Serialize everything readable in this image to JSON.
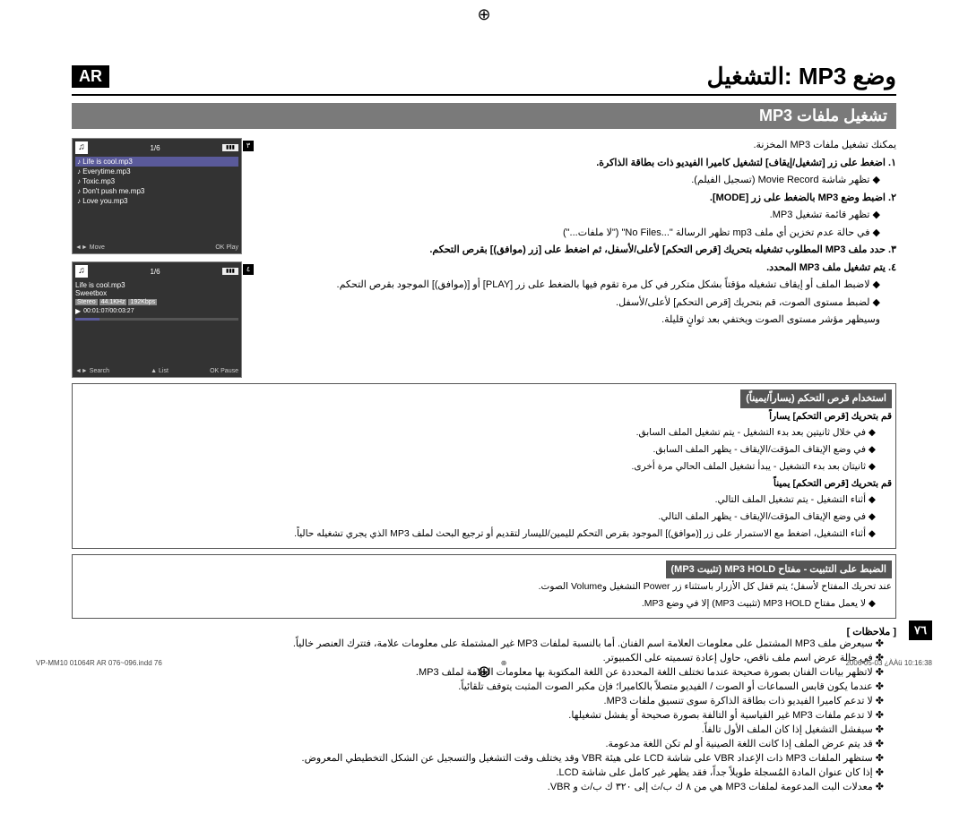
{
  "badge": "AR",
  "main_title": "وضع MP3 :التشغيل",
  "section_title": "تشغيل ملفات MP3",
  "intro": "يمكنك تشغيل ملفات MP3 المخزنة.",
  "step1": "١. اضغط على زر [تشغيل/إيقاف] لتشغيل كاميرا الفيديو ذات بطاقة الذاكرة.",
  "step1_sub": "◆ تظهر شاشة Movie Record (تسجيل الفيلم).",
  "step2": "٢. اضبط وضع MP3 بالضغط على زر [MODE].",
  "step2_sub1": "◆ تظهر قائمة تشغيل MP3.",
  "step2_sub2": "◆ في حالة عدم تخزين أي ملف mp3 تظهر الرسالة \"...No Files\" (\"لا ملفات...\")",
  "step3": "٣. حدد ملف MP3 المطلوب تشغيله بتحريك [قرص التحكم] لأعلى/لأسفل، ثم اضغط على [زر (موافق)] بقرص التحكم.",
  "step4": "٤. يتم تشغيل ملف MP3 المحدد.",
  "step4_sub1": "◆ لاضبط الملف أو إيقاف تشغيله مؤقتاً بشكل متكرر في كل مرة تقوم فيها بالضغط على زر [PLAY] أو [(موافق)] الموجود بقرص التحكم.",
  "step4_sub2": "◆ لضبط مستوى الصوت، قم بتحريك [قرص التحكم] لأعلى/لأسفل.",
  "step4_sub3": "وسيظهر مؤشر مستوى الصوت ويختفي بعد ثوانٍ قليلة.",
  "box1_title": "استخدام قرص التحكم (يساراً/يميناً)",
  "box1_h1": "قم بتحريك [قرص التحكم] يساراً",
  "box1_l1": "◆ في خلال ثانيتين بعد بدء التشغيل - يتم تشغيل الملف السابق.",
  "box1_l2": "◆ في وضع الإيقاف المؤقت/الإيقاف - يظهر الملف السابق.",
  "box1_l3": "◆ ثانيتان بعد بدء التشغيل - يبدأ تشغيل الملف الحالي مرة أخرى.",
  "box1_h2": "قم بتحريك [قرص التحكم] يميناً",
  "box1_l4": "◆ أثناء التشغيل - يتم تشغيل الملف التالي.",
  "box1_l5": "◆ في وضع الإيقاف المؤقت/الإيقاف - يظهر الملف التالي.",
  "box1_l6": "◆ أثناء التشغيل، اضغط مع الاستمرار على زر [(موافق)] الموجود بقرص التحكم لليمين/لليسار لتقديم أو ترجيع البحث لملف MP3 الذي يجري تشغيله حالياً.",
  "box2_title": "الضبط على التثبيت - مفتاح MP3 HOLD (تثبيت MP3)",
  "box2_l1": "عند تحريك المفتاح لأسفل؛ يتم قفل كل الأزرار باستثناء زر Power التشغيل وVolume الصوت.",
  "box2_l2": "◆ لا يعمل مفتاح MP3 HOLD (تثبيت MP3) إلا في وضع MP3.",
  "notes_title": "[ ملاحظات ]",
  "notes": [
    "✤ سيعرض ملف MP3 المشتمل على معلومات العلامة اسم الفنان. أما بالنسبة لملفات MP3 غير المشتملة على معلومات علامة، فتترك العنصر خالياً.",
    "✤ في حالة عرض اسم ملف ناقص، حاول إعادة تسميته على الكمبيوتر.",
    "✤ لاتظهر بيانات الفنان بصورة صحيحة عندما تختلف اللغة المحددة عن اللغة المكتوبة بها معلومات العلامة لملف MP3.",
    "✤ عندما يكون قابس السماعات أو الصوت / الفيديو متصلاً بالكاميرا؛ فإن مكبر الصوت المثبت يتوقف تلقائياً.",
    "✤ لا تدعم كاميرا الفيديو ذات بطاقة الذاكرة سوى تنسيق ملفات MP3.",
    "✤ لا تدعم ملفات MP3 غير القياسية أو التالفة بصورة صحيحة أو يفشل تشغيلها.",
    "✤ سيفشل التشغيل إذا كان الملف الأول تالفاً.",
    "✤ قد يتم عرض الملف إذا كانت اللغة الصينية أو لم تكن اللغة مدعومة.",
    "✤ ستظهر الملفات MP3 ذات الإعداد VBR على شاشة LCD على هيئة VBR وقد يختلف وقت التشغيل والتسجيل عن الشكل التخطيطي المعروض.",
    "✤ إذا كان عنوان المادة المُسجلة طويلاً جداً، فقد يظهر غير كامل على شاشة LCD.",
    "✤ معدلات البت المدعومة لملفات MP3 هي من ٨ ك ب/ث إلى ٣٢٠ ك ب/ث و VBR."
  ],
  "screen1": {
    "badge_num": "٣",
    "counter": "1/6",
    "files": [
      "Life is cool.mp3",
      "Everytime.mp3",
      "Toxic.mp3",
      "Don't push me.mp3",
      "Love you.mp3"
    ],
    "footer_left": "◄► Move",
    "footer_right": "OK Play"
  },
  "screen2": {
    "badge_num": "٤",
    "counter": "1/6",
    "title": "Life is cool.mp3",
    "artist": "Sweetbox",
    "tags": [
      "Stereo",
      "44.1KHz",
      "192Kbps"
    ],
    "time": "00:01:07/00:03:27",
    "footer_l": "◄► Search",
    "footer_m": "▲ List",
    "footer_r": "OK Pause"
  },
  "page_number": "٧٦",
  "footer_left": "VP-MM10 01064R AR 076~096.indd   76",
  "footer_right": "2006-05-03   ¿ÀÀü 10:16:38"
}
